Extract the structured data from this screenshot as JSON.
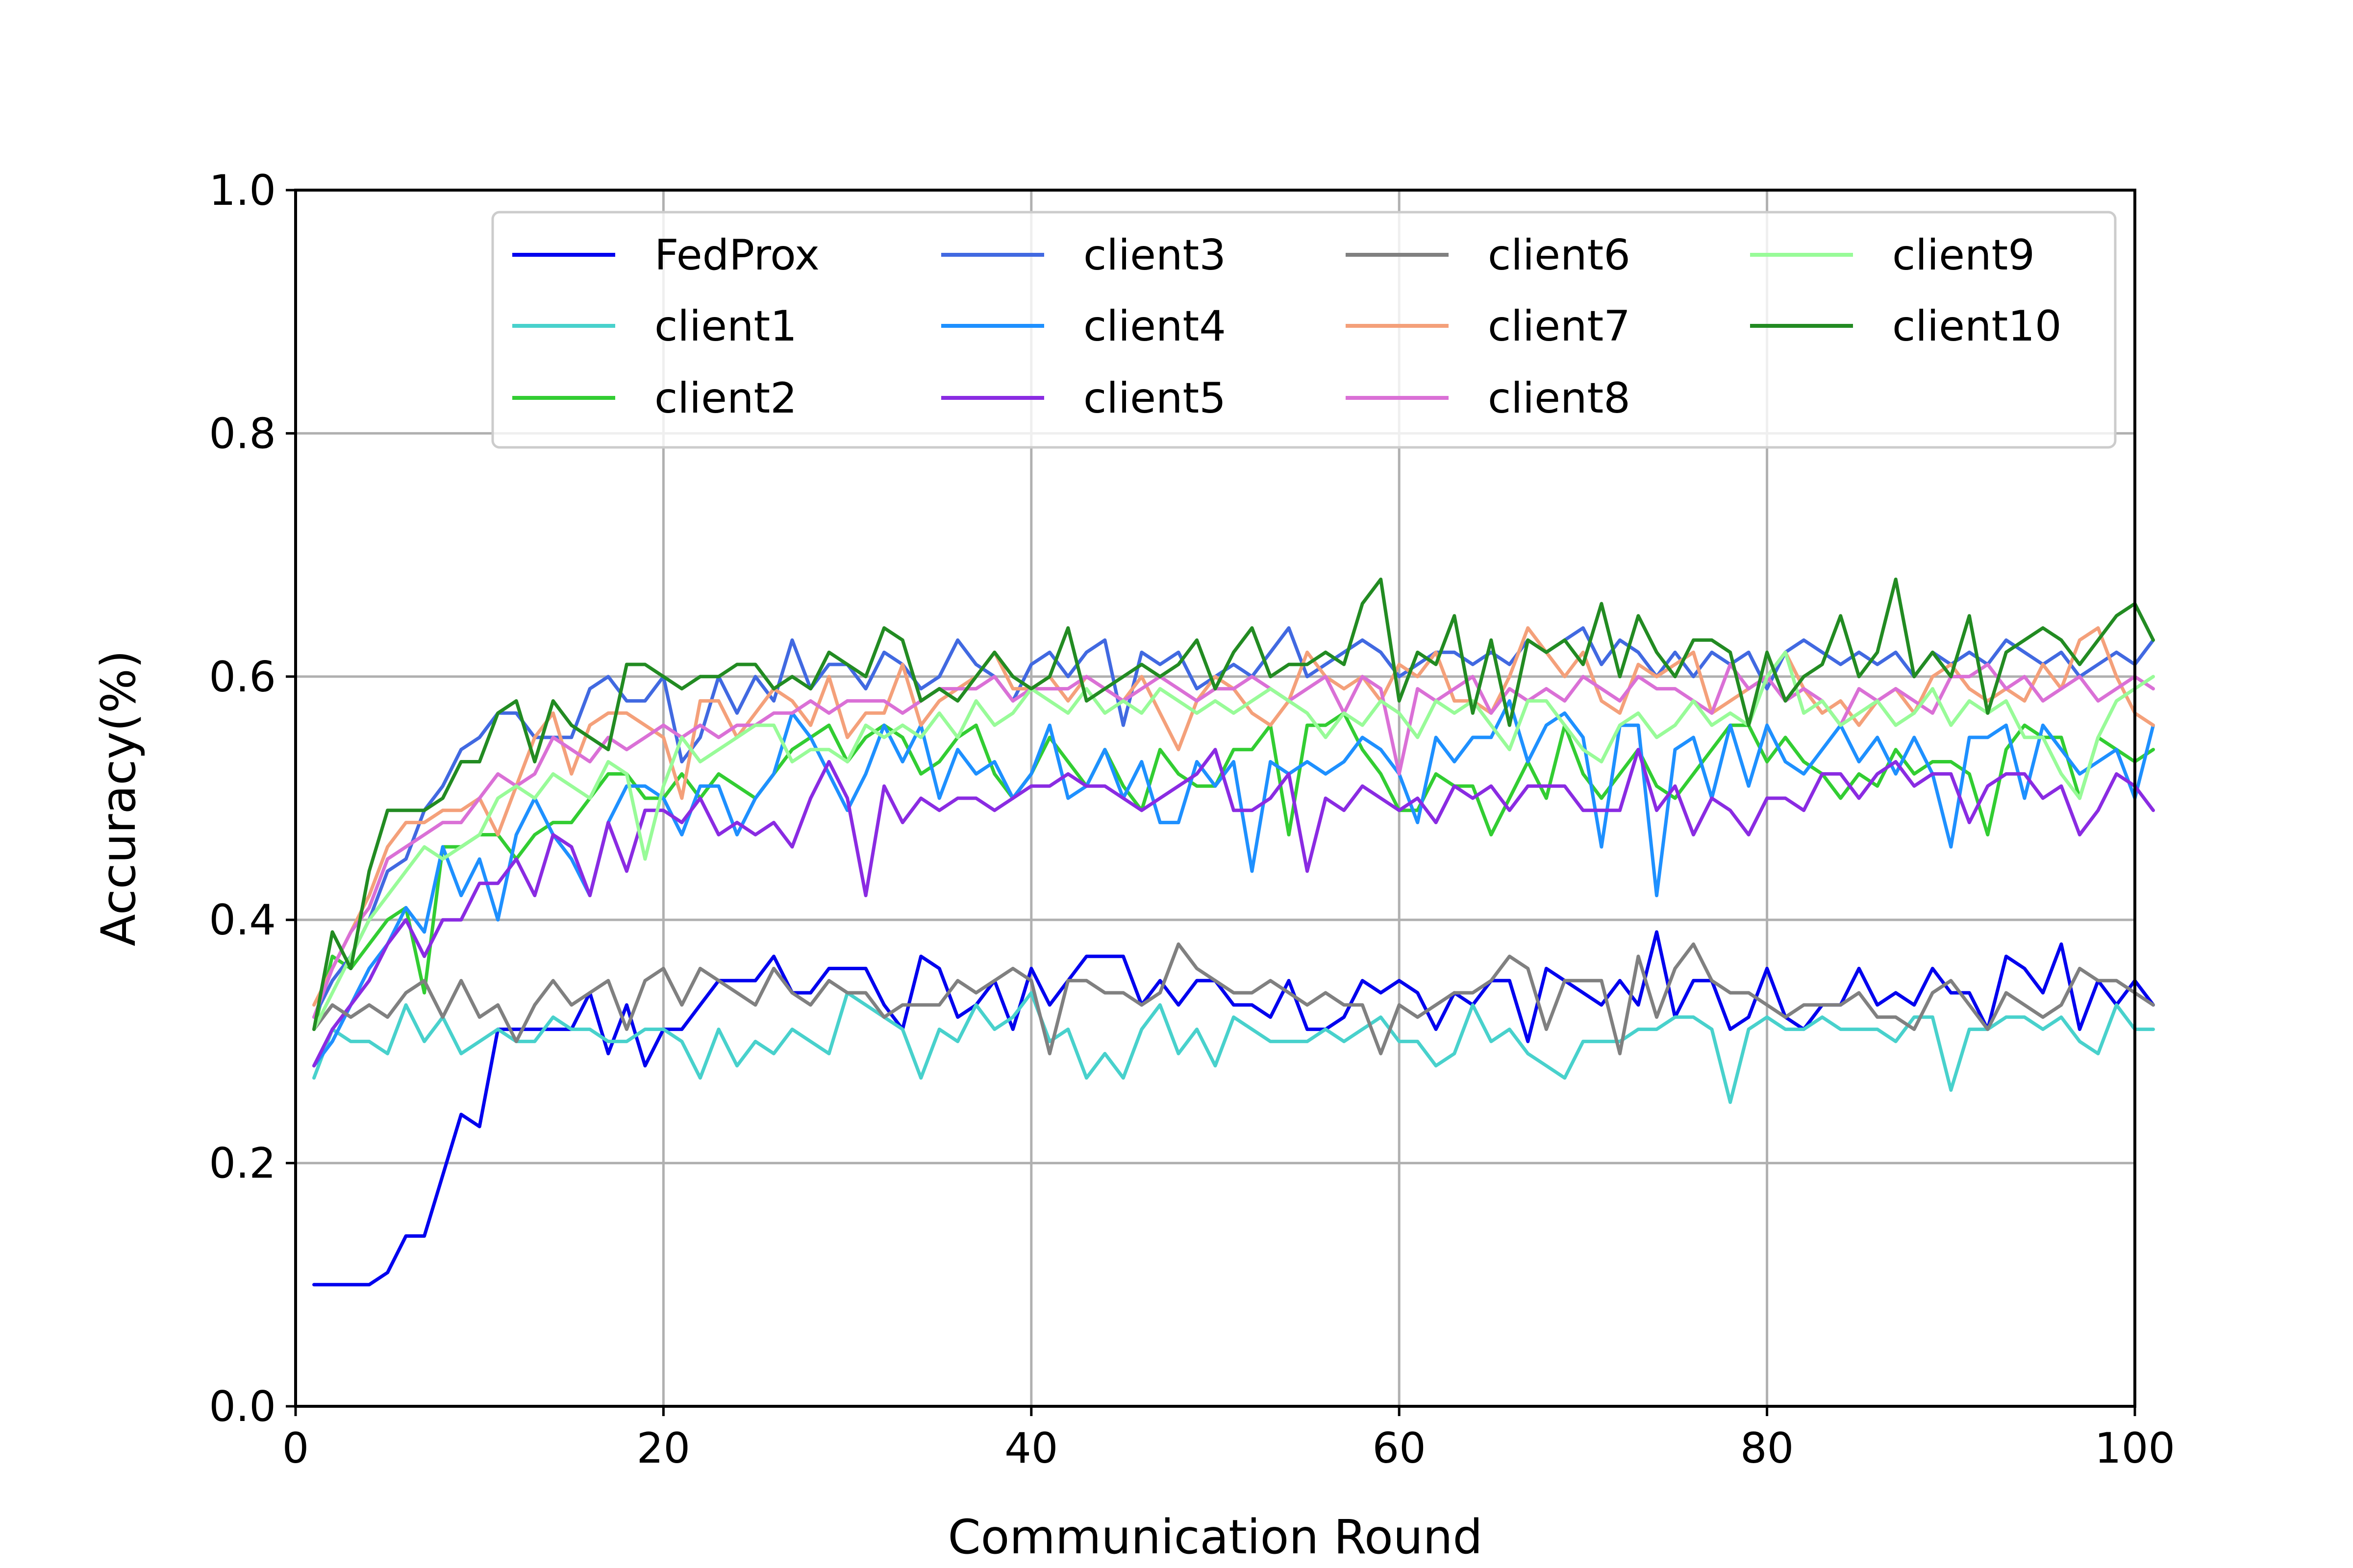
{
  "chart_data": {
    "type": "line",
    "xlabel": "Communication Round",
    "ylabel": "Accuracy(%)",
    "xlim": [
      0,
      100
    ],
    "ylim": [
      0.0,
      1.0
    ],
    "xticks": [
      0,
      20,
      40,
      60,
      80,
      100
    ],
    "yticks": [
      0.0,
      0.2,
      0.4,
      0.6,
      0.8,
      1.0
    ],
    "xtick_labels": [
      "0",
      "20",
      "40",
      "60",
      "80",
      "100"
    ],
    "ytick_labels": [
      "0.0",
      "0.2",
      "0.4",
      "0.6",
      "0.8",
      "1.0"
    ],
    "grid": true,
    "legend": {
      "position": "top-right",
      "columns": 4
    },
    "series": [
      {
        "name": "FedProx",
        "color": "#0000ee",
        "values": [
          0.1,
          0.1,
          0.1,
          0.1,
          0.11,
          0.14,
          0.14,
          0.19,
          0.24,
          0.23,
          0.31,
          0.31,
          0.31,
          0.31,
          0.31,
          0.34,
          0.29,
          0.33,
          0.28,
          0.31,
          0.31,
          0.33,
          0.35,
          0.35,
          0.35,
          0.37,
          0.34,
          0.34,
          0.36,
          0.36,
          0.36,
          0.33,
          0.31,
          0.37,
          0.36,
          0.32,
          0.33,
          0.35,
          0.31,
          0.36,
          0.33,
          0.35,
          0.37,
          0.37,
          0.37,
          0.33,
          0.35,
          0.33,
          0.35,
          0.35,
          0.33,
          0.33,
          0.32,
          0.35,
          0.31,
          0.31,
          0.32,
          0.35,
          0.34,
          0.35,
          0.34,
          0.31,
          0.34,
          0.33,
          0.35,
          0.35,
          0.3,
          0.36,
          0.35,
          0.34,
          0.33,
          0.35,
          0.33,
          0.39,
          0.32,
          0.35,
          0.35,
          0.31,
          0.32,
          0.36,
          0.32,
          0.31,
          0.33,
          0.33,
          0.36,
          0.33,
          0.34,
          0.33,
          0.36,
          0.34,
          0.34,
          0.31,
          0.37,
          0.36,
          0.34,
          0.38,
          0.31,
          0.35,
          0.33,
          0.35,
          0.33
        ]
      },
      {
        "name": "client1",
        "color": "#48d1cc",
        "values": [
          0.27,
          0.31,
          0.3,
          0.3,
          0.29,
          0.33,
          0.3,
          0.32,
          0.29,
          0.3,
          0.31,
          0.3,
          0.3,
          0.32,
          0.31,
          0.31,
          0.3,
          0.3,
          0.31,
          0.31,
          0.3,
          0.27,
          0.31,
          0.28,
          0.3,
          0.29,
          0.31,
          0.3,
          0.29,
          0.34,
          0.33,
          0.32,
          0.31,
          0.27,
          0.31,
          0.3,
          0.33,
          0.31,
          0.32,
          0.34,
          0.3,
          0.31,
          0.27,
          0.29,
          0.27,
          0.31,
          0.33,
          0.29,
          0.31,
          0.28,
          0.32,
          0.31,
          0.3,
          0.3,
          0.3,
          0.31,
          0.3,
          0.31,
          0.32,
          0.3,
          0.3,
          0.28,
          0.29,
          0.33,
          0.3,
          0.31,
          0.29,
          0.28,
          0.27,
          0.3,
          0.3,
          0.3,
          0.31,
          0.31,
          0.32,
          0.32,
          0.31,
          0.25,
          0.31,
          0.32,
          0.31,
          0.31,
          0.32,
          0.31,
          0.31,
          0.31,
          0.3,
          0.32,
          0.32,
          0.26,
          0.31,
          0.31,
          0.32,
          0.32,
          0.31,
          0.32,
          0.3,
          0.29,
          0.33,
          0.31,
          0.31
        ]
      },
      {
        "name": "client2",
        "color": "#32cd32",
        "values": [
          0.31,
          0.37,
          0.36,
          0.38,
          0.4,
          0.41,
          0.34,
          0.46,
          0.46,
          0.47,
          0.47,
          0.45,
          0.47,
          0.48,
          0.48,
          0.5,
          0.52,
          0.52,
          0.5,
          0.5,
          0.52,
          0.5,
          0.52,
          0.51,
          0.5,
          0.52,
          0.54,
          0.55,
          0.56,
          0.53,
          0.55,
          0.56,
          0.55,
          0.52,
          0.53,
          0.55,
          0.56,
          0.52,
          0.5,
          0.52,
          0.55,
          0.53,
          0.51,
          0.54,
          0.51,
          0.49,
          0.54,
          0.52,
          0.51,
          0.51,
          0.54,
          0.54,
          0.56,
          0.47,
          0.56,
          0.56,
          0.57,
          0.54,
          0.52,
          0.49,
          0.49,
          0.52,
          0.51,
          0.51,
          0.47,
          0.5,
          0.53,
          0.5,
          0.56,
          0.52,
          0.5,
          0.52,
          0.54,
          0.51,
          0.5,
          0.52,
          0.54,
          0.56,
          0.56,
          0.53,
          0.55,
          0.53,
          0.52,
          0.5,
          0.52,
          0.51,
          0.54,
          0.52,
          0.53,
          0.53,
          0.52,
          0.47,
          0.54,
          0.56,
          0.55,
          0.55,
          0.5,
          0.55,
          0.54,
          0.53,
          0.54
        ]
      },
      {
        "name": "client3",
        "color": "#4169e1",
        "values": [
          0.32,
          0.35,
          0.37,
          0.4,
          0.44,
          0.45,
          0.49,
          0.51,
          0.54,
          0.55,
          0.57,
          0.57,
          0.55,
          0.55,
          0.55,
          0.59,
          0.6,
          0.58,
          0.58,
          0.6,
          0.53,
          0.55,
          0.6,
          0.57,
          0.6,
          0.58,
          0.63,
          0.59,
          0.61,
          0.61,
          0.59,
          0.62,
          0.61,
          0.59,
          0.6,
          0.63,
          0.61,
          0.6,
          0.58,
          0.61,
          0.62,
          0.6,
          0.62,
          0.63,
          0.56,
          0.62,
          0.61,
          0.62,
          0.59,
          0.6,
          0.61,
          0.6,
          0.62,
          0.64,
          0.6,
          0.61,
          0.62,
          0.63,
          0.62,
          0.6,
          0.61,
          0.62,
          0.62,
          0.61,
          0.62,
          0.61,
          0.63,
          0.62,
          0.63,
          0.64,
          0.61,
          0.63,
          0.62,
          0.6,
          0.62,
          0.6,
          0.62,
          0.61,
          0.62,
          0.59,
          0.62,
          0.63,
          0.62,
          0.61,
          0.62,
          0.61,
          0.62,
          0.6,
          0.62,
          0.61,
          0.62,
          0.61,
          0.63,
          0.62,
          0.61,
          0.62,
          0.6,
          0.61,
          0.62,
          0.61,
          0.63
        ]
      },
      {
        "name": "client4",
        "color": "#1e90ff",
        "values": [
          0.28,
          0.3,
          0.33,
          0.36,
          0.38,
          0.41,
          0.39,
          0.46,
          0.42,
          0.45,
          0.4,
          0.47,
          0.5,
          0.47,
          0.45,
          0.42,
          0.48,
          0.51,
          0.51,
          0.5,
          0.47,
          0.51,
          0.51,
          0.47,
          0.5,
          0.52,
          0.57,
          0.55,
          0.52,
          0.49,
          0.52,
          0.56,
          0.53,
          0.56,
          0.5,
          0.54,
          0.52,
          0.53,
          0.5,
          0.52,
          0.56,
          0.5,
          0.51,
          0.54,
          0.5,
          0.53,
          0.48,
          0.48,
          0.53,
          0.51,
          0.53,
          0.44,
          0.53,
          0.52,
          0.53,
          0.52,
          0.53,
          0.55,
          0.54,
          0.52,
          0.48,
          0.55,
          0.53,
          0.55,
          0.55,
          0.58,
          0.53,
          0.56,
          0.57,
          0.55,
          0.46,
          0.56,
          0.56,
          0.42,
          0.54,
          0.55,
          0.5,
          0.56,
          0.51,
          0.56,
          0.53,
          0.52,
          0.54,
          0.56,
          0.53,
          0.55,
          0.52,
          0.55,
          0.52,
          0.46,
          0.55,
          0.55,
          0.56,
          0.5,
          0.56,
          0.54,
          0.52,
          0.53,
          0.54,
          0.5,
          0.56
        ]
      },
      {
        "name": "client5",
        "color": "#8a2be2",
        "values": [
          0.28,
          0.31,
          0.33,
          0.35,
          0.38,
          0.4,
          0.37,
          0.4,
          0.4,
          0.43,
          0.43,
          0.45,
          0.42,
          0.47,
          0.46,
          0.42,
          0.48,
          0.44,
          0.49,
          0.49,
          0.48,
          0.5,
          0.47,
          0.48,
          0.47,
          0.48,
          0.46,
          0.5,
          0.53,
          0.5,
          0.42,
          0.51,
          0.48,
          0.5,
          0.49,
          0.5,
          0.5,
          0.49,
          0.5,
          0.51,
          0.51,
          0.52,
          0.51,
          0.51,
          0.5,
          0.49,
          0.5,
          0.51,
          0.52,
          0.54,
          0.49,
          0.49,
          0.5,
          0.52,
          0.44,
          0.5,
          0.49,
          0.51,
          0.5,
          0.49,
          0.5,
          0.48,
          0.51,
          0.5,
          0.51,
          0.49,
          0.51,
          0.51,
          0.51,
          0.49,
          0.49,
          0.49,
          0.54,
          0.49,
          0.51,
          0.47,
          0.5,
          0.49,
          0.47,
          0.5,
          0.5,
          0.49,
          0.52,
          0.52,
          0.5,
          0.52,
          0.53,
          0.51,
          0.52,
          0.52,
          0.48,
          0.51,
          0.52,
          0.52,
          0.5,
          0.51,
          0.47,
          0.49,
          0.52,
          0.51,
          0.49
        ]
      },
      {
        "name": "client6",
        "color": "#808080",
        "values": [
          0.31,
          0.33,
          0.32,
          0.33,
          0.32,
          0.34,
          0.35,
          0.32,
          0.35,
          0.32,
          0.33,
          0.3,
          0.33,
          0.35,
          0.33,
          0.34,
          0.35,
          0.31,
          0.35,
          0.36,
          0.33,
          0.36,
          0.35,
          0.34,
          0.33,
          0.36,
          0.34,
          0.33,
          0.35,
          0.34,
          0.34,
          0.32,
          0.33,
          0.33,
          0.33,
          0.35,
          0.34,
          0.35,
          0.36,
          0.35,
          0.29,
          0.35,
          0.35,
          0.34,
          0.34,
          0.33,
          0.34,
          0.38,
          0.36,
          0.35,
          0.34,
          0.34,
          0.35,
          0.34,
          0.33,
          0.34,
          0.33,
          0.33,
          0.29,
          0.33,
          0.32,
          0.33,
          0.34,
          0.34,
          0.35,
          0.37,
          0.36,
          0.31,
          0.35,
          0.35,
          0.35,
          0.29,
          0.37,
          0.32,
          0.36,
          0.38,
          0.35,
          0.34,
          0.34,
          0.33,
          0.32,
          0.33,
          0.33,
          0.33,
          0.34,
          0.32,
          0.32,
          0.31,
          0.34,
          0.35,
          0.33,
          0.31,
          0.34,
          0.33,
          0.32,
          0.33,
          0.36,
          0.35,
          0.35,
          0.34,
          0.33
        ]
      },
      {
        "name": "client7",
        "color": "#f4a07a",
        "values": [
          0.33,
          0.36,
          0.39,
          0.42,
          0.46,
          0.48,
          0.48,
          0.49,
          0.49,
          0.5,
          0.47,
          0.51,
          0.55,
          0.57,
          0.52,
          0.56,
          0.57,
          0.57,
          0.56,
          0.55,
          0.5,
          0.58,
          0.58,
          0.55,
          0.57,
          0.59,
          0.58,
          0.56,
          0.6,
          0.55,
          0.57,
          0.57,
          0.61,
          0.56,
          0.58,
          0.59,
          0.6,
          0.62,
          0.59,
          0.59,
          0.6,
          0.58,
          0.6,
          0.59,
          0.58,
          0.6,
          0.57,
          0.54,
          0.58,
          0.6,
          0.59,
          0.57,
          0.56,
          0.58,
          0.62,
          0.6,
          0.59,
          0.6,
          0.58,
          0.61,
          0.6,
          0.62,
          0.58,
          0.58,
          0.57,
          0.6,
          0.64,
          0.62,
          0.6,
          0.62,
          0.58,
          0.57,
          0.61,
          0.6,
          0.61,
          0.62,
          0.57,
          0.58,
          0.59,
          0.6,
          0.62,
          0.59,
          0.57,
          0.58,
          0.56,
          0.58,
          0.59,
          0.57,
          0.6,
          0.61,
          0.59,
          0.58,
          0.59,
          0.58,
          0.61,
          0.59,
          0.63,
          0.64,
          0.6,
          0.57,
          0.56
        ]
      },
      {
        "name": "client8",
        "color": "#da70d6",
        "values": [
          0.32,
          0.36,
          0.39,
          0.41,
          0.45,
          0.46,
          0.47,
          0.48,
          0.48,
          0.5,
          0.52,
          0.51,
          0.52,
          0.55,
          0.54,
          0.53,
          0.55,
          0.54,
          0.55,
          0.56,
          0.55,
          0.56,
          0.55,
          0.56,
          0.56,
          0.57,
          0.57,
          0.58,
          0.57,
          0.58,
          0.58,
          0.58,
          0.57,
          0.58,
          0.59,
          0.59,
          0.59,
          0.6,
          0.58,
          0.59,
          0.59,
          0.59,
          0.6,
          0.59,
          0.58,
          0.59,
          0.6,
          0.59,
          0.58,
          0.59,
          0.59,
          0.6,
          0.59,
          0.58,
          0.59,
          0.6,
          0.57,
          0.6,
          0.59,
          0.52,
          0.59,
          0.58,
          0.59,
          0.6,
          0.57,
          0.59,
          0.58,
          0.59,
          0.58,
          0.6,
          0.59,
          0.58,
          0.6,
          0.59,
          0.59,
          0.58,
          0.57,
          0.61,
          0.59,
          0.6,
          0.58,
          0.59,
          0.58,
          0.56,
          0.59,
          0.58,
          0.59,
          0.58,
          0.57,
          0.6,
          0.6,
          0.61,
          0.59,
          0.6,
          0.58,
          0.59,
          0.6,
          0.58,
          0.59,
          0.6,
          0.59
        ]
      },
      {
        "name": "client9",
        "color": "#98fb98",
        "values": [
          0.31,
          0.34,
          0.37,
          0.4,
          0.42,
          0.44,
          0.46,
          0.45,
          0.46,
          0.47,
          0.5,
          0.51,
          0.5,
          0.52,
          0.51,
          0.5,
          0.53,
          0.52,
          0.45,
          0.51,
          0.55,
          0.53,
          0.54,
          0.55,
          0.56,
          0.56,
          0.53,
          0.54,
          0.54,
          0.53,
          0.56,
          0.55,
          0.56,
          0.55,
          0.57,
          0.55,
          0.58,
          0.56,
          0.57,
          0.59,
          0.58,
          0.57,
          0.59,
          0.57,
          0.58,
          0.57,
          0.59,
          0.58,
          0.57,
          0.58,
          0.57,
          0.58,
          0.59,
          0.58,
          0.57,
          0.55,
          0.57,
          0.56,
          0.58,
          0.57,
          0.55,
          0.58,
          0.57,
          0.58,
          0.56,
          0.54,
          0.58,
          0.58,
          0.56,
          0.54,
          0.53,
          0.56,
          0.57,
          0.55,
          0.56,
          0.58,
          0.56,
          0.57,
          0.56,
          0.6,
          0.62,
          0.57,
          0.58,
          0.56,
          0.57,
          0.58,
          0.56,
          0.57,
          0.59,
          0.56,
          0.58,
          0.57,
          0.58,
          0.55,
          0.55,
          0.52,
          0.5,
          0.55,
          0.58,
          0.59,
          0.6
        ]
      },
      {
        "name": "client10",
        "color": "#228b22",
        "values": [
          0.31,
          0.39,
          0.36,
          0.44,
          0.49,
          0.49,
          0.49,
          0.5,
          0.53,
          0.53,
          0.57,
          0.58,
          0.53,
          0.58,
          0.56,
          0.55,
          0.54,
          0.61,
          0.61,
          0.6,
          0.59,
          0.6,
          0.6,
          0.61,
          0.61,
          0.59,
          0.6,
          0.59,
          0.62,
          0.61,
          0.6,
          0.64,
          0.63,
          0.58,
          0.59,
          0.58,
          0.6,
          0.62,
          0.6,
          0.59,
          0.6,
          0.64,
          0.58,
          0.59,
          0.6,
          0.61,
          0.6,
          0.61,
          0.63,
          0.59,
          0.62,
          0.64,
          0.6,
          0.61,
          0.61,
          0.62,
          0.61,
          0.66,
          0.68,
          0.58,
          0.62,
          0.61,
          0.65,
          0.57,
          0.63,
          0.56,
          0.63,
          0.62,
          0.63,
          0.61,
          0.66,
          0.6,
          0.65,
          0.62,
          0.6,
          0.63,
          0.63,
          0.62,
          0.56,
          0.62,
          0.58,
          0.6,
          0.61,
          0.65,
          0.6,
          0.62,
          0.68,
          0.6,
          0.62,
          0.6,
          0.65,
          0.57,
          0.62,
          0.63,
          0.64,
          0.63,
          0.61,
          0.63,
          0.65,
          0.66,
          0.63
        ]
      }
    ]
  }
}
